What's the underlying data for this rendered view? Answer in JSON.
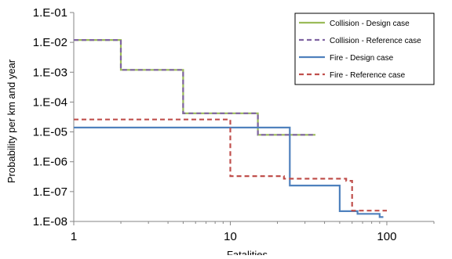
{
  "chart_data": {
    "type": "line",
    "step": true,
    "title": "",
    "xlabel": "Fatalities",
    "ylabel": "Probability per km and year",
    "xscale": "log",
    "yscale": "log",
    "xlim": [
      1,
      200
    ],
    "ylim": [
      1e-08,
      0.1
    ],
    "x_ticks": [
      {
        "value": 1,
        "label": "1"
      },
      {
        "value": 10,
        "label": "10"
      },
      {
        "value": 100,
        "label": "100"
      }
    ],
    "y_ticks": [
      {
        "value": 0.1,
        "label": "1.E-01"
      },
      {
        "value": 0.01,
        "label": "1.E-02"
      },
      {
        "value": 0.001,
        "label": "1.E-03"
      },
      {
        "value": 0.0001,
        "label": "1.E-04"
      },
      {
        "value": 1e-05,
        "label": "1.E-05"
      },
      {
        "value": 1e-06,
        "label": "1.E-06"
      },
      {
        "value": 1e-07,
        "label": "1.E-07"
      },
      {
        "value": 1e-08,
        "label": "1.E-08"
      }
    ],
    "grid": false,
    "legend_position": "top-right",
    "series": [
      {
        "name": "Collision - Design case",
        "color": "#9bbb59",
        "dash": "solid",
        "x": [
          1,
          2,
          5,
          15,
          35
        ],
        "y": [
          0.012,
          0.0012,
          4.2e-05,
          8e-06,
          8e-06
        ]
      },
      {
        "name": "Collision - Reference case",
        "color": "#8064a2",
        "dash": "dashed",
        "x": [
          1,
          2,
          5,
          15,
          35
        ],
        "y": [
          0.012,
          0.0012,
          4.2e-05,
          8e-06,
          8e-06
        ]
      },
      {
        "name": "Fire - Design case",
        "color": "#4f81bd",
        "dash": "solid",
        "x": [
          1,
          24,
          50,
          65,
          90,
          95
        ],
        "y": [
          1.4e-05,
          1.6e-07,
          2.2e-08,
          1.8e-08,
          1.4e-08,
          1.4e-08
        ]
      },
      {
        "name": "Fire - Reference case",
        "color": "#c0504d",
        "dash": "dashed",
        "x": [
          1,
          10,
          22,
          55,
          60,
          100
        ],
        "y": [
          2.6e-05,
          3.3e-07,
          2.7e-07,
          2.3e-07,
          2.3e-08,
          2.3e-08
        ]
      }
    ]
  }
}
